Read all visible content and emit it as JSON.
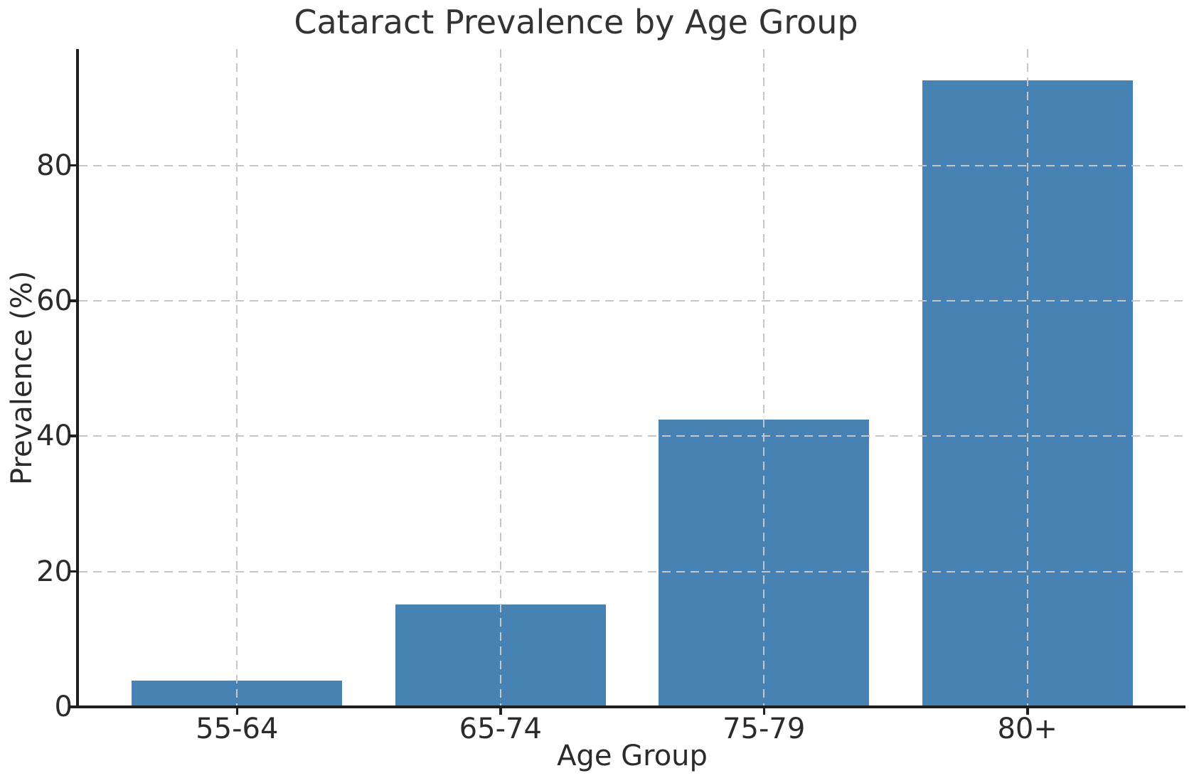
{
  "chart_data": {
    "type": "bar",
    "title": "Cataract Prevalence by Age Group",
    "xlabel": "Age Group",
    "ylabel": "Prevalence (%)",
    "categories": [
      "55-64",
      "65-74",
      "75-79",
      "80+"
    ],
    "values": [
      3.9,
      15.1,
      42.5,
      92.6
    ],
    "yticks": [
      0,
      20,
      40,
      60,
      80
    ],
    "ylim": [
      0,
      97.2
    ],
    "grid": "dashed-both-axes-above-bars",
    "legend": "none",
    "bar_color": "#4682B4",
    "grid_color": "#C6C6C6",
    "axis_color": "#1F1F1F",
    "text_color": "#2B2B2B",
    "background_color": "#FFFFFF"
  }
}
